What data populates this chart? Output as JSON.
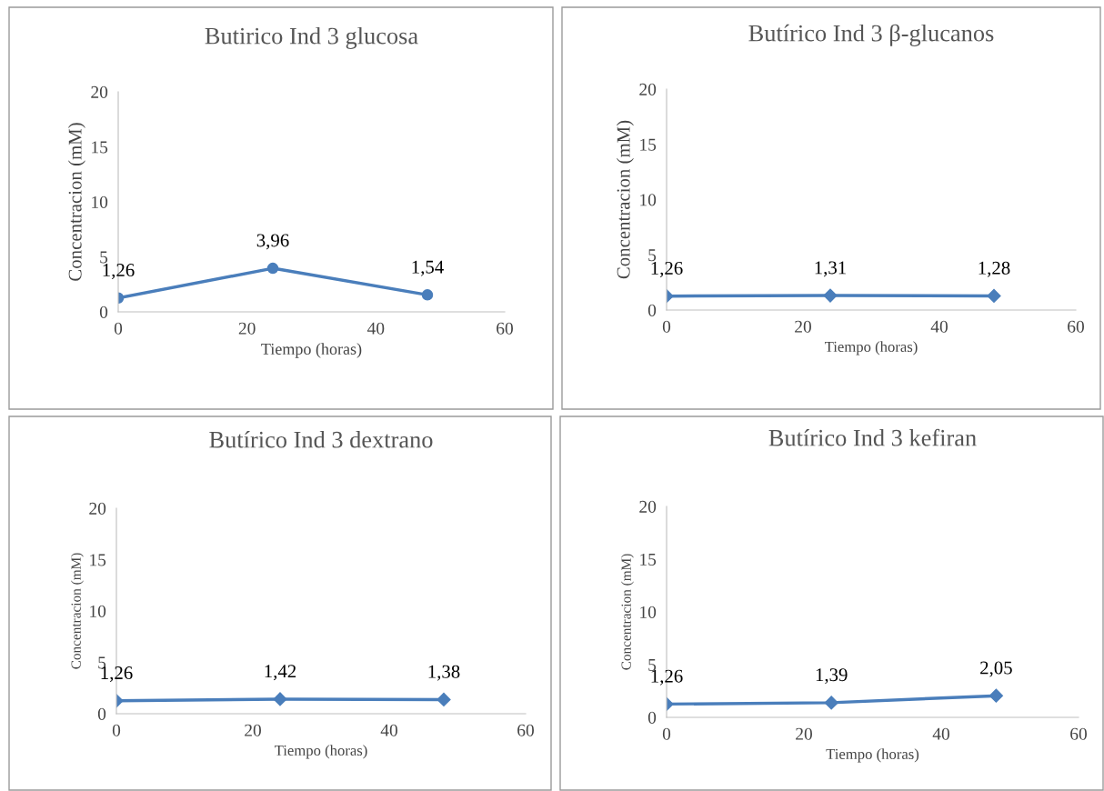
{
  "chart_data": [
    {
      "type": "line",
      "title": "Butirico Ind 3 glucosa",
      "xlabel": "Tiempo (horas)",
      "ylabel": "Concentracion (mM)",
      "x": [
        0,
        24,
        48
      ],
      "series": [
        {
          "color": "#4a7ebb",
          "values": [
            1.26,
            3.96,
            1.54
          ],
          "value_labels": [
            "1,26",
            "3,96",
            "1,54"
          ]
        }
      ],
      "xlim": [
        0,
        60
      ],
      "xticks": [
        0,
        20,
        40,
        60
      ],
      "ylim": [
        0,
        20
      ],
      "yticks": [
        0,
        5,
        10,
        15,
        20
      ],
      "marker": "circle",
      "line_style": "solid",
      "grid": false,
      "legend": false
    },
    {
      "type": "line",
      "title": "Butírico Ind 3 β-glucanos",
      "xlabel": "Tiempo (horas)",
      "ylabel": "Concentracion (mM)",
      "x": [
        0,
        24,
        48
      ],
      "series": [
        {
          "color": "#4a7ebb",
          "values": [
            1.26,
            1.31,
            1.28
          ],
          "value_labels": [
            "1,26",
            "1,31",
            "1,28"
          ]
        }
      ],
      "xlim": [
        0,
        60
      ],
      "xticks": [
        0,
        20,
        40,
        60
      ],
      "ylim": [
        0,
        20
      ],
      "yticks": [
        0,
        5,
        10,
        15,
        20
      ],
      "marker": "diamond",
      "line_style": "solid",
      "grid": false,
      "legend": false
    },
    {
      "type": "line",
      "title": "Butírico Ind 3 dextrano",
      "xlabel": "Tiempo (horas)",
      "ylabel": "Concentracion (mM)",
      "x": [
        0,
        24,
        48
      ],
      "series": [
        {
          "color": "#4a7ebb",
          "values": [
            1.26,
            1.42,
            1.38
          ],
          "value_labels": [
            "1,26",
            "1,42",
            "1,38"
          ]
        }
      ],
      "xlim": [
        0,
        60
      ],
      "xticks": [
        0,
        20,
        40,
        60
      ],
      "ylim": [
        0,
        20
      ],
      "yticks": [
        0,
        5,
        10,
        15,
        20
      ],
      "marker": "diamond",
      "line_style": "solid",
      "grid": false,
      "legend": false
    },
    {
      "type": "line",
      "title": "Butírico Ind 3 kefiran",
      "xlabel": "Tiempo (horas)",
      "ylabel": "Concentracion (mM)",
      "x": [
        0,
        24,
        48
      ],
      "series": [
        {
          "color": "#4a7ebb",
          "values": [
            1.26,
            1.39,
            2.05
          ],
          "value_labels": [
            "1,26",
            "1,39",
            "2,05"
          ]
        }
      ],
      "xlim": [
        0,
        60
      ],
      "xticks": [
        0,
        20,
        40,
        60
      ],
      "ylim": [
        0,
        20
      ],
      "yticks": [
        0,
        5,
        10,
        15,
        20
      ],
      "marker": "diamond",
      "line_style": "solid",
      "grid": false,
      "legend": false
    }
  ]
}
